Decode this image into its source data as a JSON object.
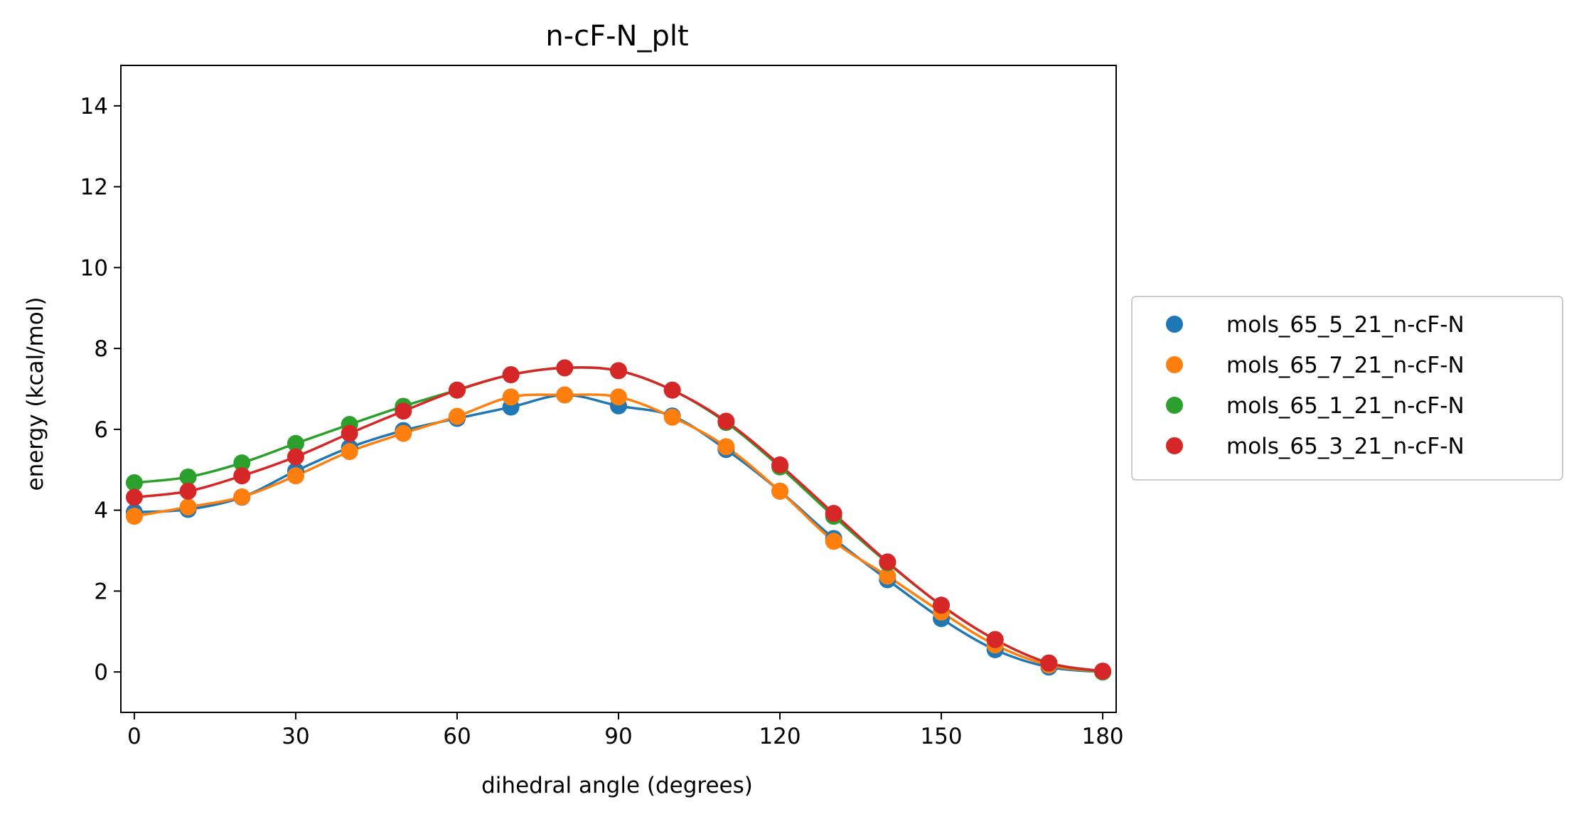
{
  "chart_data": {
    "type": "scatter",
    "title": "n-cF-N_plt",
    "xlabel": "dihedral angle (degrees)",
    "ylabel": "energy (kcal/mol)",
    "xlim": [
      -2.5,
      182.5
    ],
    "ylim": [
      -1,
      15
    ],
    "xticks": [
      0,
      30,
      60,
      90,
      120,
      150,
      180
    ],
    "yticks": [
      0,
      2,
      4,
      6,
      8,
      10,
      12,
      14
    ],
    "grid": false,
    "legend_position": "outside right",
    "x": [
      0,
      10,
      20,
      30,
      40,
      50,
      60,
      70,
      80,
      90,
      100,
      110,
      120,
      130,
      140,
      150,
      160,
      170,
      180
    ],
    "series": [
      {
        "name": "mols_65_5_21_n-cF-N",
        "color": "#1f77b4",
        "values": [
          3.95,
          4.02,
          4.32,
          4.97,
          5.55,
          5.97,
          6.27,
          6.55,
          6.85,
          6.58,
          6.33,
          5.5,
          4.47,
          3.3,
          2.28,
          1.32,
          0.55,
          0.12,
          0.0
        ]
      },
      {
        "name": "mols_65_7_21_n-cF-N",
        "color": "#ff7f0e",
        "values": [
          3.85,
          4.08,
          4.33,
          4.85,
          5.45,
          5.9,
          6.32,
          6.8,
          6.85,
          6.8,
          6.3,
          5.57,
          4.47,
          3.23,
          2.37,
          1.48,
          0.67,
          0.17,
          0.0
        ]
      },
      {
        "name": "mols_65_1_21_n-cF-N",
        "color": "#2ca02c",
        "values": [
          4.68,
          4.82,
          5.17,
          5.65,
          6.12,
          6.57,
          6.97,
          7.35,
          7.52,
          7.45,
          6.97,
          6.17,
          5.07,
          3.85,
          2.7,
          1.65,
          0.8,
          0.22,
          0.0
        ]
      },
      {
        "name": "mols_65_3_21_n-cF-N",
        "color": "#d62728",
        "values": [
          4.32,
          4.47,
          4.85,
          5.32,
          5.9,
          6.45,
          6.97,
          7.35,
          7.52,
          7.45,
          6.97,
          6.2,
          5.12,
          3.92,
          2.72,
          1.65,
          0.8,
          0.22,
          0.02
        ]
      }
    ]
  }
}
